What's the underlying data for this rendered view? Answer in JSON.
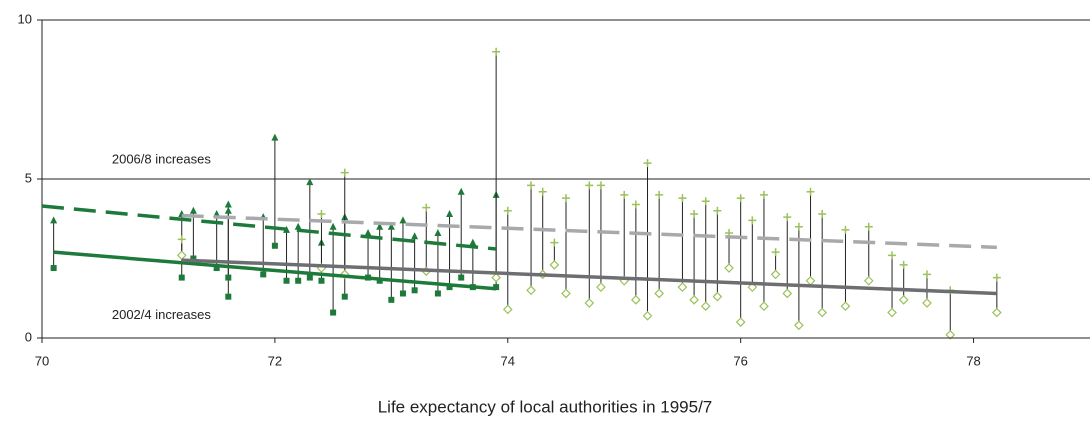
{
  "chart_data": {
    "type": "dumbbell",
    "xlabel": "Life expectancy of local authorities in 1995/7",
    "xlim": [
      70,
      79
    ],
    "xticks": [
      70,
      72,
      74,
      76,
      78
    ],
    "ylim": [
      0,
      10
    ],
    "yticks": [
      0,
      5,
      10
    ],
    "grid": true,
    "annotations": [
      {
        "text": "2006/8 increases",
        "x": 70.6,
        "y": 5.6
      },
      {
        "text": "2002/4 increases",
        "x": 70.6,
        "y": 0.7
      }
    ],
    "groups": [
      {
        "color": "#1e7a3a",
        "low_marker": "square",
        "high_marker": "triangle",
        "x": [
          70.1,
          71.2,
          71.3,
          71.5,
          71.6,
          71.6,
          71.9,
          72.0,
          72.1,
          72.2,
          72.3,
          72.4,
          72.5,
          72.6,
          72.8,
          72.9,
          73.0,
          73.1,
          73.2,
          73.4,
          73.5,
          73.6,
          73.7,
          73.9
        ],
        "low": [
          2.2,
          1.9,
          2.5,
          2.2,
          1.3,
          1.9,
          2.0,
          2.9,
          1.8,
          1.8,
          1.9,
          1.8,
          0.8,
          1.3,
          1.9,
          1.8,
          1.2,
          1.4,
          1.5,
          1.4,
          1.6,
          1.9,
          1.6,
          1.6
        ],
        "high": [
          3.7,
          3.9,
          4.0,
          3.9,
          4.2,
          4.0,
          3.8,
          6.3,
          3.4,
          3.5,
          4.9,
          3.0,
          3.5,
          3.8,
          3.3,
          3.5,
          3.5,
          3.7,
          3.2,
          3.3,
          3.9,
          4.6,
          3.0,
          4.5
        ]
      },
      {
        "color": "#9bc15a",
        "low_marker": "diamond",
        "high_marker": "plus",
        "x": [
          71.2,
          72.4,
          72.6,
          73.3,
          73.9,
          74.0,
          74.2,
          74.3,
          74.4,
          74.5,
          74.7,
          74.8,
          75.0,
          75.1,
          75.2,
          75.3,
          75.5,
          75.6,
          75.7,
          75.8,
          75.9,
          76.0,
          76.1,
          76.2,
          76.3,
          76.4,
          76.5,
          76.6,
          76.7,
          76.9,
          77.1,
          77.3,
          77.4,
          77.6,
          77.8,
          78.2
        ],
        "low": [
          2.6,
          2.2,
          2.0,
          2.1,
          1.9,
          0.9,
          1.5,
          2.0,
          2.3,
          1.4,
          1.1,
          1.6,
          1.8,
          1.2,
          0.7,
          1.4,
          1.6,
          1.2,
          1.0,
          1.3,
          2.2,
          0.5,
          1.6,
          1.0,
          2.0,
          1.4,
          0.4,
          1.8,
          0.8,
          1.0,
          1.8,
          0.8,
          1.2,
          1.1,
          0.1,
          0.8
        ],
        "high": [
          3.1,
          3.9,
          5.2,
          4.1,
          9.0,
          4.0,
          4.8,
          4.6,
          3.0,
          4.4,
          4.8,
          4.8,
          4.5,
          4.2,
          5.5,
          4.5,
          4.4,
          3.9,
          4.3,
          4.0,
          3.3,
          4.4,
          3.7,
          4.5,
          2.7,
          3.8,
          3.5,
          4.6,
          3.9,
          3.4,
          3.5,
          2.6,
          2.3,
          2.0,
          1.5,
          1.9
        ]
      }
    ],
    "trend_lines": [
      {
        "color": "#1e7a3a",
        "dashed": false,
        "x": [
          70.1,
          73.9
        ],
        "values": [
          2.7,
          1.55
        ]
      },
      {
        "color": "#1e7a3a",
        "dashed": true,
        "x": [
          70.0,
          73.9
        ],
        "values": [
          4.15,
          2.8
        ]
      },
      {
        "color": "#6d6e71",
        "dashed": false,
        "x": [
          71.2,
          78.2
        ],
        "values": [
          2.45,
          1.4
        ]
      },
      {
        "color": "#a7a9ac",
        "dashed": true,
        "x": [
          71.2,
          78.2
        ],
        "values": [
          3.85,
          2.85
        ]
      }
    ]
  }
}
